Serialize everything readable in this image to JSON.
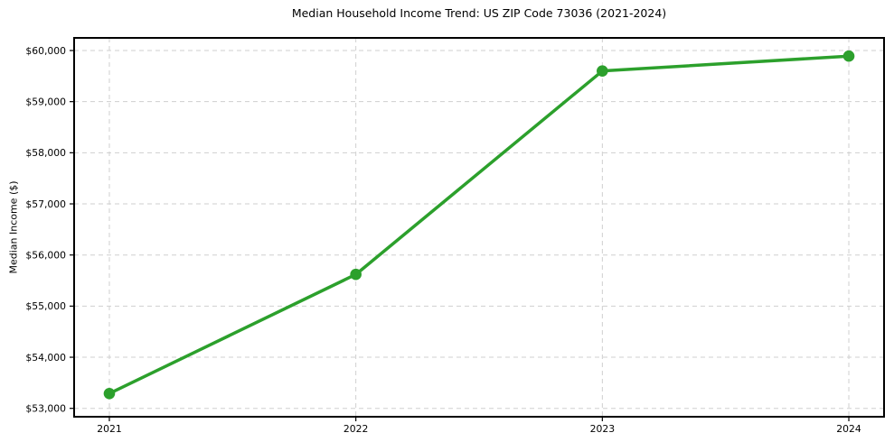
{
  "chart_data": {
    "type": "line",
    "title": "Median Household Income Trend: US ZIP Code 73036 (2021-2024)",
    "xlabel": "",
    "ylabel": "Median Income ($)",
    "categories": [
      "2021",
      "2022",
      "2023",
      "2024"
    ],
    "series": [
      {
        "name": "Median Household Income",
        "values": [
          53290,
          55620,
          59600,
          59890
        ],
        "color": "#2ca02c"
      }
    ],
    "y_ticks": [
      53000,
      54000,
      55000,
      56000,
      57000,
      58000,
      59000,
      60000
    ],
    "y_tick_labels": [
      "$53,000",
      "$54,000",
      "$55,000",
      "$56,000",
      "$57,000",
      "$58,000",
      "$59,000",
      "$60,000"
    ],
    "ylim": [
      52836,
      60247
    ],
    "grid": true,
    "grid_style": "dashed",
    "legend_position": "none",
    "marker": "circle"
  },
  "style": {
    "line_color": "#2ca02c",
    "marker_color": "#2ca02c",
    "grid_color": "#cfcfcf",
    "spine_color": "#000000",
    "tick_color": "#000000",
    "background": "#ffffff"
  }
}
